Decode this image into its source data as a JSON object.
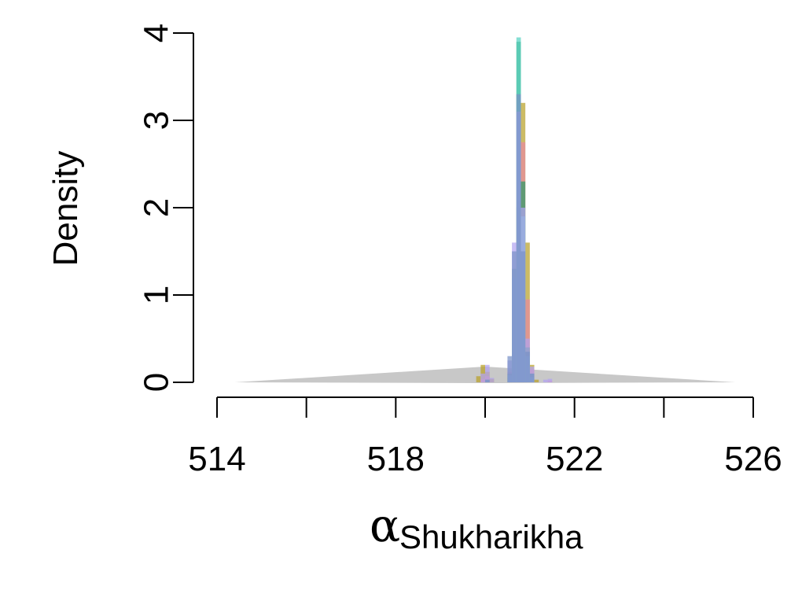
{
  "chart_data": {
    "type": "histogram",
    "xlabel": {
      "symbol": "α",
      "subscript": "Shukharikha"
    },
    "ylabel": "Density",
    "xlim": [
      514,
      526
    ],
    "ylim": [
      0,
      4
    ],
    "x_ticks": [
      514,
      516,
      518,
      520,
      522,
      524,
      526
    ],
    "x_tick_labels": [
      "514",
      "518",
      "522",
      "526"
    ],
    "y_ticks": [
      0,
      1,
      2,
      3,
      4
    ],
    "y_tick_labels": [
      "0",
      "1",
      "2",
      "3",
      "4"
    ],
    "grid": false,
    "legend": "none",
    "prior": {
      "shape": "triangular",
      "color": "#c8c8c8",
      "min": 514.4,
      "mode": 520.0,
      "max": 525.6,
      "peak_density": 0.18
    },
    "series": [
      {
        "color": "#b9a12a",
        "bins": [
          [
            519.8,
            519.9,
            0.07
          ],
          [
            519.9,
            520.0,
            0.2
          ],
          [
            520.0,
            520.1,
            0.12
          ],
          [
            520.1,
            520.2,
            0.04
          ],
          [
            520.5,
            520.6,
            0.05
          ],
          [
            520.6,
            520.7,
            0.6
          ],
          [
            520.7,
            520.8,
            2.0
          ],
          [
            520.8,
            520.9,
            3.2
          ],
          [
            520.9,
            521.0,
            1.6
          ],
          [
            521.0,
            521.1,
            0.2
          ],
          [
            521.1,
            521.2,
            0.03
          ]
        ]
      },
      {
        "color": "#e98aa0",
        "bins": [
          [
            519.9,
            520.0,
            0.04
          ],
          [
            520.0,
            520.1,
            0.07
          ],
          [
            520.5,
            520.6,
            0.12
          ],
          [
            520.6,
            520.7,
            1.2
          ],
          [
            520.7,
            520.8,
            3.3
          ],
          [
            520.8,
            520.9,
            2.75
          ],
          [
            520.9,
            521.0,
            0.95
          ],
          [
            521.0,
            521.1,
            0.15
          ],
          [
            521.4,
            521.5,
            0.02
          ]
        ]
      },
      {
        "color": "#2e9c6a",
        "bins": [
          [
            520.0,
            520.1,
            0.03
          ],
          [
            520.5,
            520.6,
            0.1
          ],
          [
            520.6,
            520.7,
            1.3
          ],
          [
            520.7,
            520.8,
            3.9
          ],
          [
            520.8,
            520.9,
            2.3
          ],
          [
            520.9,
            521.0,
            0.4
          ],
          [
            521.0,
            521.1,
            0.1
          ]
        ]
      },
      {
        "color": "#56d3c2",
        "bins": [
          [
            520.5,
            520.6,
            0.08
          ],
          [
            520.6,
            520.7,
            1.2
          ],
          [
            520.7,
            520.8,
            3.95
          ],
          [
            520.8,
            520.9,
            1.9
          ],
          [
            520.9,
            521.0,
            0.3
          ],
          [
            521.0,
            521.1,
            0.06
          ]
        ]
      },
      {
        "color": "#b2a4f2",
        "bins": [
          [
            519.9,
            520.0,
            0.1
          ],
          [
            520.0,
            520.1,
            0.2
          ],
          [
            520.1,
            520.2,
            0.05
          ],
          [
            520.5,
            520.6,
            0.25
          ],
          [
            520.6,
            520.7,
            1.6
          ],
          [
            520.7,
            520.8,
            3.1
          ],
          [
            520.8,
            520.9,
            2.0
          ],
          [
            520.9,
            521.0,
            0.5
          ],
          [
            521.0,
            521.1,
            0.18
          ],
          [
            521.3,
            521.4,
            0.03
          ],
          [
            521.4,
            521.5,
            0.04
          ]
        ]
      },
      {
        "color": "#7a93c8",
        "bins": [
          [
            520.0,
            520.1,
            0.03
          ],
          [
            520.5,
            520.6,
            0.3
          ],
          [
            520.6,
            520.7,
            1.5
          ],
          [
            520.7,
            520.8,
            3.3
          ],
          [
            520.8,
            520.9,
            1.5
          ],
          [
            520.9,
            521.0,
            0.35
          ],
          [
            521.0,
            521.1,
            0.1
          ]
        ]
      }
    ]
  }
}
